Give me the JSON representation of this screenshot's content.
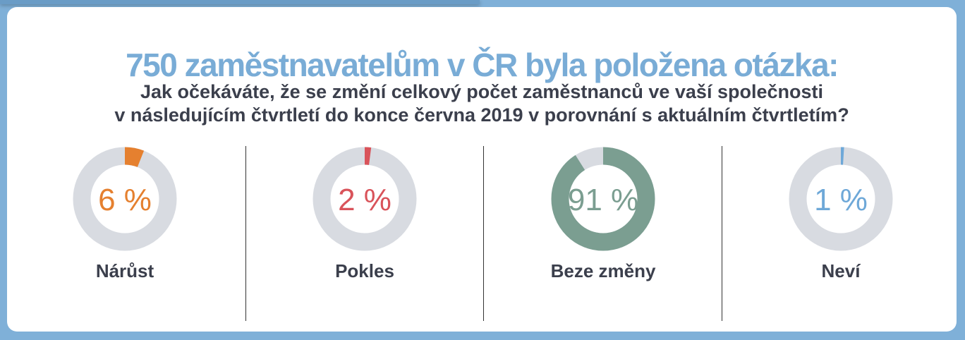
{
  "header": {
    "title": "750 zaměstnavatelům v ČR byla položena otázka:",
    "subtitle_line1": "Jak očekáváte, že se změní celkový počet zaměstnanců ve vaší společnosti",
    "subtitle_line2": "v následujícím čtvrtletí do konce června 2019 v porovnání s aktuálním čtvrtletím?"
  },
  "colors": {
    "track": "#d8dbe1",
    "title": "#79acd6",
    "text": "#3b3f4c"
  },
  "chart_data": {
    "type": "pie",
    "variant": "donut",
    "items": [
      {
        "label": "Nárůst",
        "value": 6,
        "value_text": "6 %",
        "color": "#e5802f"
      },
      {
        "label": "Pokles",
        "value": 2,
        "value_text": "2 %",
        "color": "#d9535a"
      },
      {
        "label": "Beze změny",
        "value": 91,
        "value_text": "91 %",
        "color": "#7b9e91"
      },
      {
        "label": "Neví",
        "value": 1,
        "value_text": "1 %",
        "color": "#6ea8d8"
      }
    ]
  }
}
